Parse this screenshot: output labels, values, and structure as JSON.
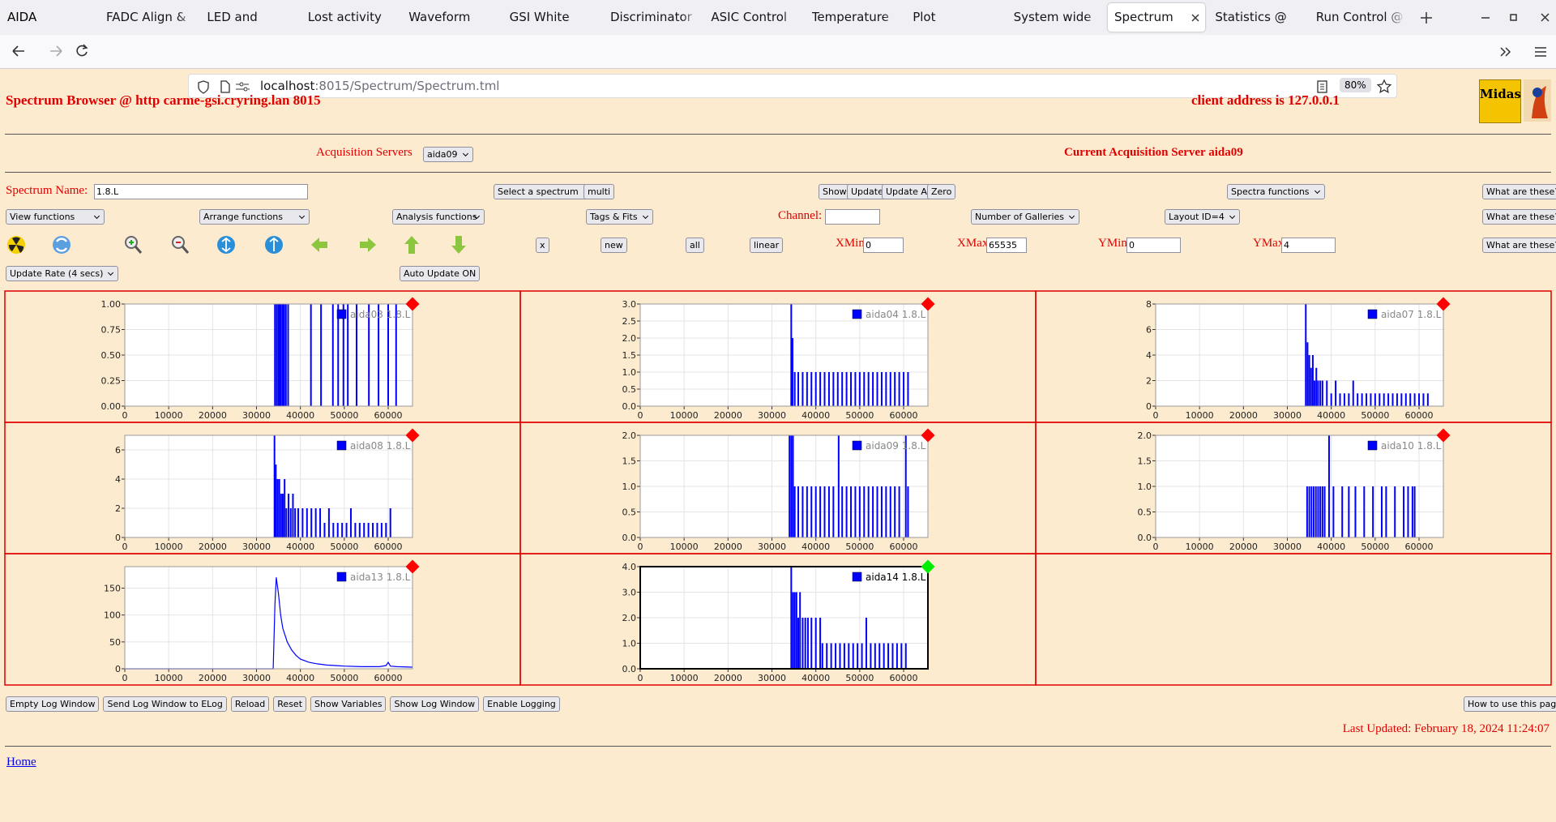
{
  "browser": {
    "window_title": "AIDA",
    "tabs": [
      "FADC Align & C",
      "LED and Wavefo",
      "Lost activity mo",
      "Waveform captu",
      "GSI White Rabb",
      "Discriminator co",
      "ASIC Control @",
      "Temperature an",
      "Plot Temperatu",
      "System wide Ch",
      "Spectrum Bro",
      "Statistics @ car",
      "Run Control @"
    ],
    "active_tab": 10,
    "url_host": "localhost",
    "url_path": ":8015/Spectrum/Spectrum.tml",
    "zoom": "80%"
  },
  "header": {
    "title": "Spectrum Browser @ http carme-gsi.cryring.lan 8015",
    "client": "client address is 127.0.0.1",
    "logo": "Midas",
    "acq_label": "Acquisition Servers",
    "acq_select": "aida09",
    "current_server": "Current Acquisition Server aida09"
  },
  "controls": {
    "spectrum_name_label": "Spectrum Name:",
    "spectrum_name": "1.8.L",
    "select_spectrum": "Select a spectrum",
    "multi": "multi",
    "show": "Show",
    "update": "Update",
    "update_all": "Update All",
    "zero": "Zero",
    "spectra_functions": "Spectra functions",
    "what": "What are these?",
    "view_functions": "View functions",
    "arrange_functions": "Arrange functions",
    "analysis_functions": "Analysis functions",
    "tags_fits": "Tags & Fits",
    "channel_label": "Channel:",
    "galleries": "Number of Galleries",
    "layout": "Layout ID=4",
    "x": "x",
    "new": "new",
    "all": "all",
    "linear": "linear",
    "xmin_label": "XMin",
    "xmin": "0",
    "xmax_label": "XMax",
    "xmax": "65535",
    "ymin_label": "YMin",
    "ymin": "0",
    "ymax_label": "YMax",
    "ymax": "4",
    "update_rate": "Update Rate (4 secs)",
    "auto_update": "Auto Update ON"
  },
  "footer": {
    "buttons": [
      "Empty Log Window",
      "Send Log Window to ELog",
      "Reload",
      "Reset",
      "Show Variables",
      "Show Log Window",
      "Enable Logging"
    ],
    "how_to": "How to use this page",
    "last_updated": "Last Updated: February 18, 2024 11:24:07",
    "home": "Home"
  },
  "chart_data": [
    {
      "type": "bar",
      "status_color": "#ff0000",
      "frame_color": "#999999",
      "x": [
        34200,
        34600,
        35000,
        35300,
        35600,
        36000,
        36300,
        36700,
        37200,
        42400,
        44700,
        47400,
        48600,
        49800,
        50800,
        52800,
        55600,
        57800,
        60000,
        61800
      ],
      "series": [
        {
          "name": "aida03 1.8.L",
          "color": "#0000ff",
          "values": [
            1,
            1,
            1,
            1,
            1,
            1,
            1,
            1,
            1,
            1,
            1,
            1,
            1,
            1,
            1,
            1,
            1,
            1,
            1,
            1
          ]
        }
      ],
      "xlim": [
        0,
        65535
      ],
      "xticks": [
        0,
        10000,
        20000,
        30000,
        40000,
        50000,
        60000
      ],
      "ylim": [
        0,
        1
      ],
      "yticks": [
        {
          "value": 0,
          "label": "0.00"
        },
        {
          "value": 0.25,
          "label": "0.25"
        },
        {
          "value": 0.5,
          "label": "0.50"
        },
        {
          "value": 0.75,
          "label": "0.75"
        },
        {
          "value": 1,
          "label": "1.00"
        }
      ],
      "grid": true
    },
    {
      "type": "bar",
      "status_color": "#ff0000",
      "frame_color": "#999999",
      "x": [
        34400,
        34700,
        35200,
        36000,
        37000,
        38000,
        39000,
        40000,
        41000,
        42000,
        43000,
        44000,
        45000,
        46000,
        47000,
        48000,
        49000,
        50000,
        51000,
        52000,
        53000,
        54000,
        55000,
        56000,
        57000,
        58000,
        59000,
        60000,
        61000
      ],
      "series": [
        {
          "name": "aida04 1.8.L",
          "color": "#0000ff",
          "values": [
            3,
            2,
            1,
            1,
            1,
            1,
            1,
            1,
            1,
            1,
            1,
            1,
            1,
            1,
            1,
            1,
            1,
            1,
            1,
            1,
            1,
            1,
            1,
            1,
            1,
            1,
            1,
            1,
            1
          ]
        }
      ],
      "xlim": [
        0,
        65535
      ],
      "xticks": [
        0,
        10000,
        20000,
        30000,
        40000,
        50000,
        60000
      ],
      "ylim": [
        0,
        3
      ],
      "yticks": [
        {
          "value": 0,
          "label": "0.0"
        },
        {
          "value": 0.5,
          "label": "0.5"
        },
        {
          "value": 1,
          "label": "1.0"
        },
        {
          "value": 1.5,
          "label": "1.5"
        },
        {
          "value": 2,
          "label": "2.0"
        },
        {
          "value": 2.5,
          "label": "2.5"
        },
        {
          "value": 3,
          "label": "3.0"
        }
      ],
      "grid": true
    },
    {
      "type": "bar",
      "status_color": "#ff0000",
      "frame_color": "#999999",
      "x": [
        34200,
        34600,
        35000,
        35400,
        35800,
        36200,
        36600,
        37000,
        37500,
        38000,
        39000,
        40000,
        41000,
        42000,
        43000,
        44000,
        45000,
        46000,
        47000,
        48000,
        49000,
        50000,
        51000,
        52000,
        53000,
        54000,
        55000,
        56000,
        57000,
        58000,
        59000,
        60000,
        61000,
        62000
      ],
      "series": [
        {
          "name": "aida07 1.8.L",
          "color": "#0000ff",
          "values": [
            8,
            5,
            4,
            3,
            4,
            2,
            3,
            2,
            2,
            2,
            2,
            1,
            2,
            1,
            1,
            1,
            2,
            1,
            1,
            1,
            1,
            1,
            1,
            1,
            1,
            1,
            1,
            1,
            1,
            1,
            1,
            1,
            1,
            1
          ]
        }
      ],
      "xlim": [
        0,
        65535
      ],
      "xticks": [
        0,
        10000,
        20000,
        30000,
        40000,
        50000,
        60000
      ],
      "ylim": [
        0,
        8
      ],
      "yticks": [
        0,
        2,
        4,
        6,
        8
      ],
      "grid": true
    },
    {
      "type": "bar",
      "status_color": "#ff0000",
      "frame_color": "#999999",
      "x": [
        34100,
        34400,
        34800,
        35200,
        35600,
        36000,
        36400,
        36800,
        37300,
        37800,
        38300,
        38800,
        39500,
        40500,
        41500,
        42500,
        43500,
        44500,
        45500,
        46500,
        47500,
        48500,
        49500,
        50500,
        51500,
        52500,
        53500,
        54500,
        55500,
        56500,
        57500,
        58500,
        59500,
        60500
      ],
      "series": [
        {
          "name": "aida08 1.8.L",
          "color": "#0000ff",
          "values": [
            7,
            5,
            4,
            4,
            3,
            3,
            4,
            2,
            3,
            2,
            3,
            2,
            2,
            2,
            2,
            2,
            2,
            2,
            1,
            2,
            1,
            1,
            1,
            1,
            2,
            1,
            1,
            1,
            1,
            1,
            1,
            1,
            1,
            2
          ]
        }
      ],
      "xlim": [
        0,
        65535
      ],
      "xticks": [
        0,
        10000,
        20000,
        30000,
        40000,
        50000,
        60000
      ],
      "ylim": [
        0,
        7
      ],
      "yticks": [
        0,
        2,
        4,
        6
      ],
      "grid": true
    },
    {
      "type": "bar",
      "status_color": "#ff0000",
      "frame_color": "#999999",
      "x": [
        34000,
        34400,
        34800,
        35200,
        36000,
        37000,
        38000,
        39000,
        40000,
        41000,
        42000,
        43000,
        44000,
        45200,
        46000,
        47000,
        48000,
        49000,
        50000,
        51000,
        52000,
        53000,
        54000,
        55000,
        56000,
        57000,
        58000,
        59000,
        60500,
        61000
      ],
      "series": [
        {
          "name": "aida09 1.8.L",
          "color": "#0000ff",
          "values": [
            2,
            2,
            2,
            1,
            1,
            1,
            1,
            1,
            1,
            1,
            1,
            1,
            1,
            2,
            1,
            1,
            1,
            1,
            1,
            1,
            1,
            1,
            1,
            1,
            1,
            1,
            1,
            1,
            2,
            1
          ]
        }
      ],
      "xlim": [
        0,
        65535
      ],
      "xticks": [
        0,
        10000,
        20000,
        30000,
        40000,
        50000,
        60000
      ],
      "ylim": [
        0,
        2
      ],
      "yticks": [
        {
          "value": 0,
          "label": "0.0"
        },
        {
          "value": 0.5,
          "label": "0.5"
        },
        {
          "value": 1,
          "label": "1.0"
        },
        {
          "value": 1.5,
          "label": "1.5"
        },
        {
          "value": 2,
          "label": "2.0"
        }
      ],
      "grid": true
    },
    {
      "type": "bar",
      "status_color": "#ff0000",
      "frame_color": "#999999",
      "x": [
        34500,
        35000,
        35500,
        36000,
        36500,
        37000,
        37500,
        38000,
        38500,
        39500,
        40500,
        42500,
        44000,
        45500,
        47500,
        49500,
        51500,
        52500,
        54500,
        56500,
        57500,
        58500,
        59000
      ],
      "series": [
        {
          "name": "aida10 1.8.L",
          "color": "#0000ff",
          "values": [
            1,
            1,
            1,
            1,
            1,
            1,
            1,
            1,
            1,
            2,
            1,
            1,
            1,
            1,
            1,
            1,
            1,
            1,
            1,
            1,
            1,
            1,
            1
          ]
        }
      ],
      "xlim": [
        0,
        65535
      ],
      "xticks": [
        0,
        10000,
        20000,
        30000,
        40000,
        50000,
        60000
      ],
      "ylim": [
        0,
        2
      ],
      "yticks": [
        {
          "value": 0,
          "label": "0.0"
        },
        {
          "value": 0.5,
          "label": "0.5"
        },
        {
          "value": 1,
          "label": "1.0"
        },
        {
          "value": 1.5,
          "label": "1.5"
        },
        {
          "value": 2,
          "label": "2.0"
        }
      ],
      "grid": true
    },
    {
      "type": "line",
      "status_color": "#ff0000",
      "frame_color": "#999999",
      "x": [
        0,
        10000,
        20000,
        30000,
        33800,
        34200,
        34500,
        35000,
        35500,
        36000,
        37000,
        38000,
        39000,
        40000,
        42000,
        44000,
        46000,
        48000,
        50000,
        54000,
        58000,
        59500,
        60000,
        60500,
        62000,
        65535
      ],
      "series": [
        {
          "name": "aida13 1.8.L",
          "color": "#0000ff",
          "values": [
            0,
            0,
            0,
            0,
            0,
            120,
            170,
            140,
            100,
            75,
            50,
            35,
            25,
            18,
            12,
            9,
            7,
            6,
            5,
            4,
            4,
            6,
            12,
            5,
            4,
            3
          ]
        }
      ],
      "xlim": [
        0,
        65535
      ],
      "xticks": [
        0,
        10000,
        20000,
        30000,
        40000,
        50000,
        60000
      ],
      "ylim": [
        0,
        190
      ],
      "yticks": [
        0,
        50,
        100,
        150
      ],
      "grid": true
    },
    {
      "type": "bar",
      "status_color": "#00ee00",
      "frame_color": "#000000",
      "x": [
        34400,
        34800,
        35200,
        35600,
        36000,
        36400,
        37000,
        37600,
        38200,
        39000,
        40000,
        41000,
        41500,
        42500,
        43500,
        44500,
        45500,
        46500,
        47500,
        48500,
        49500,
        50500,
        51500,
        52500,
        53500,
        54500,
        55500,
        56500,
        57500,
        58500,
        59500,
        60500
      ],
      "series": [
        {
          "name": "aida14 1.8.L",
          "color": "#0000ff",
          "values": [
            4,
            3,
            3,
            3,
            2,
            3,
            2,
            2,
            2,
            2,
            2,
            2,
            1,
            1,
            1,
            1,
            1,
            1,
            1,
            1,
            1,
            1,
            2,
            1,
            1,
            1,
            1,
            1,
            1,
            1,
            1,
            1
          ]
        }
      ],
      "xlim": [
        0,
        65535
      ],
      "xticks": [
        0,
        10000,
        20000,
        30000,
        40000,
        50000,
        60000
      ],
      "ylim": [
        0,
        4
      ],
      "yticks": [
        {
          "value": 0,
          "label": "0.0"
        },
        {
          "value": 1,
          "label": "1.0"
        },
        {
          "value": 2,
          "label": "2.0"
        },
        {
          "value": 3,
          "label": "3.0"
        },
        {
          "value": 4,
          "label": "4.0"
        }
      ],
      "grid": true
    }
  ]
}
